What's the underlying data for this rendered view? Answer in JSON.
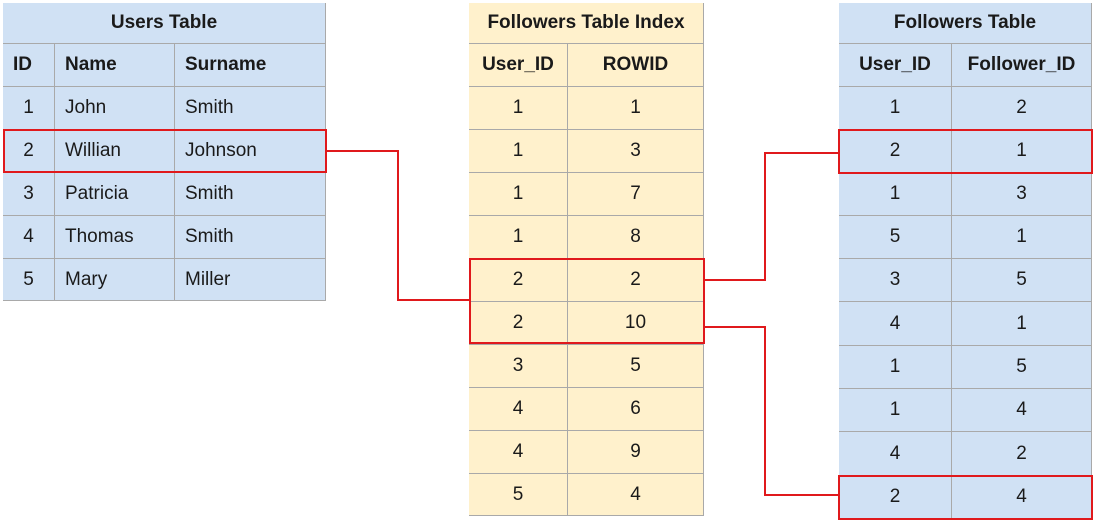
{
  "users_table": {
    "title": "Users Table",
    "headers": [
      "ID",
      "Name",
      "Surname"
    ],
    "rows": [
      [
        "1",
        "John",
        "Smith"
      ],
      [
        "2",
        "Willian",
        "Johnson"
      ],
      [
        "3",
        "Patricia",
        "Smith"
      ],
      [
        "4",
        "Thomas",
        "Smith"
      ],
      [
        "5",
        "Mary",
        "Miller"
      ]
    ]
  },
  "index_table": {
    "title": "Followers Table Index",
    "headers": [
      "User_ID",
      "ROWID"
    ],
    "rows": [
      [
        "1",
        "1"
      ],
      [
        "1",
        "3"
      ],
      [
        "1",
        "7"
      ],
      [
        "1",
        "8"
      ],
      [
        "2",
        "2"
      ],
      [
        "2",
        "10"
      ],
      [
        "3",
        "5"
      ],
      [
        "4",
        "6"
      ],
      [
        "4",
        "9"
      ],
      [
        "5",
        "4"
      ]
    ]
  },
  "followers_table": {
    "title": "Followers Table",
    "headers": [
      "User_ID",
      "Follower_ID"
    ],
    "rows": [
      [
        "1",
        "2"
      ],
      [
        "2",
        "1"
      ],
      [
        "1",
        "3"
      ],
      [
        "5",
        "1"
      ],
      [
        "3",
        "5"
      ],
      [
        "4",
        "1"
      ],
      [
        "1",
        "5"
      ],
      [
        "1",
        "4"
      ],
      [
        "4",
        "2"
      ],
      [
        "2",
        "4"
      ]
    ]
  },
  "colors": {
    "users_fill": "#d0e1f4",
    "index_fill": "#fff1cc",
    "followers_fill": "#d0e1f4",
    "highlight": "#e0191c",
    "grid": "#a9a9a9"
  }
}
